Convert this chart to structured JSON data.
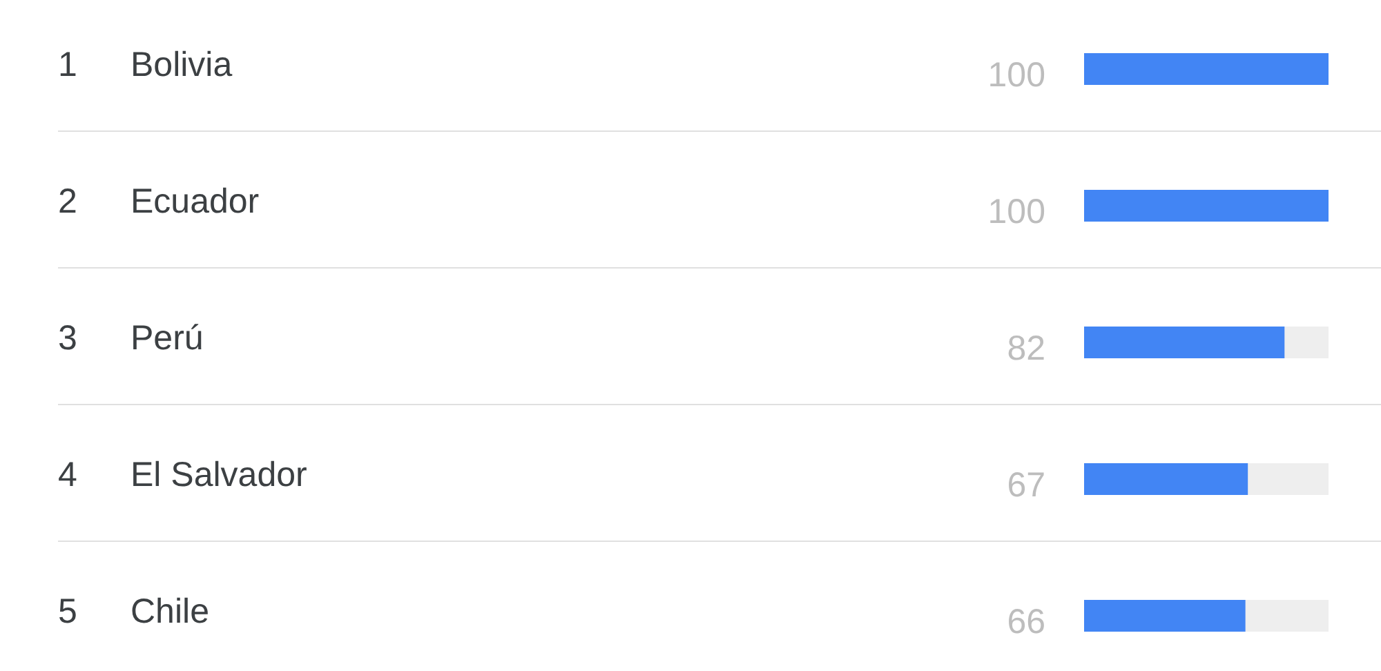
{
  "chart_data": {
    "type": "bar",
    "orientation": "horizontal",
    "categories": [
      "Bolivia",
      "Ecuador",
      "Perú",
      "El Salvador",
      "Chile"
    ],
    "values": [
      100,
      100,
      82,
      67,
      66
    ],
    "color": "#4285f4",
    "data_labels": true,
    "xlim": [
      0,
      100
    ],
    "tick_labels": "y",
    "grid": "y",
    "annotations": [
      "1",
      "2",
      "3",
      "4",
      "5"
    ]
  }
}
